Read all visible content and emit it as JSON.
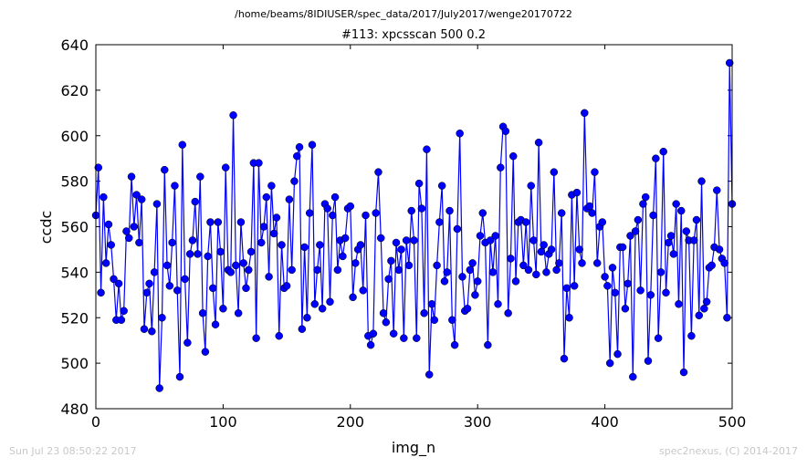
{
  "chart_data": {
    "type": "line",
    "suptitle": "/home/beams/8IDIUSER/spec_data/2017/July2017/wenge20170722",
    "title": "#113: xpcsscan 500 0.2",
    "xlabel": "img_n",
    "ylabel": "ccdc",
    "footer_left": "Sun Jul 23 08:50:22 2017",
    "footer_right": "spec2nexus, (C) 2014-2017",
    "x": [
      0,
      2,
      4,
      6,
      8,
      10,
      12,
      14,
      16,
      18,
      20,
      22,
      24,
      26,
      28,
      30,
      32,
      34,
      36,
      38,
      40,
      42,
      44,
      46,
      48,
      50,
      52,
      54,
      56,
      58,
      60,
      62,
      64,
      66,
      68,
      70,
      72,
      74,
      76,
      78,
      80,
      82,
      84,
      86,
      88,
      90,
      92,
      94,
      96,
      98,
      100,
      102,
      104,
      106,
      108,
      110,
      112,
      114,
      116,
      118,
      120,
      122,
      124,
      126,
      128,
      130,
      132,
      134,
      136,
      138,
      140,
      142,
      144,
      146,
      148,
      150,
      152,
      154,
      156,
      158,
      160,
      162,
      164,
      166,
      168,
      170,
      172,
      174,
      176,
      178,
      180,
      182,
      184,
      186,
      188,
      190,
      192,
      194,
      196,
      198,
      200,
      202,
      204,
      206,
      208,
      210,
      212,
      214,
      216,
      218,
      220,
      222,
      224,
      226,
      228,
      230,
      232,
      234,
      236,
      238,
      240,
      242,
      244,
      246,
      248,
      250,
      252,
      254,
      256,
      258,
      260,
      262,
      264,
      266,
      268,
      270,
      272,
      274,
      276,
      278,
      280,
      282,
      284,
      286,
      288,
      290,
      292,
      294,
      296,
      298,
      300,
      302,
      304,
      306,
      308,
      310,
      312,
      314,
      316,
      318,
      320,
      322,
      324,
      326,
      328,
      330,
      332,
      334,
      336,
      338,
      340,
      342,
      344,
      346,
      348,
      350,
      352,
      354,
      356,
      358,
      360,
      362,
      364,
      366,
      368,
      370,
      372,
      374,
      376,
      378,
      380,
      382,
      384,
      386,
      388,
      390,
      392,
      394,
      396,
      398,
      400,
      402,
      404,
      406,
      408,
      410,
      412,
      414,
      416,
      418,
      420,
      422,
      424,
      426,
      428,
      430,
      432,
      434,
      436,
      438,
      440,
      442,
      444,
      446,
      448,
      450,
      452,
      454,
      456,
      458,
      460,
      462,
      464,
      466,
      468,
      470,
      472,
      474,
      476,
      478,
      480,
      482,
      484,
      486,
      488,
      490,
      492,
      494,
      496,
      498,
      500
    ],
    "series": [
      {
        "color": "#0000ff",
        "values": [
          565,
          586,
          531,
          573,
          544,
          561,
          552,
          537,
          519,
          535,
          519,
          523,
          558,
          555,
          582,
          560,
          574,
          553,
          572,
          515,
          531,
          535,
          514,
          540,
          570,
          489,
          520,
          585,
          543,
          534,
          553,
          578,
          532,
          494,
          596,
          537,
          509,
          548,
          554,
          571,
          548,
          582,
          522,
          505,
          547,
          562,
          533,
          517,
          562,
          549,
          524,
          586,
          541,
          540,
          609,
          543,
          522,
          562,
          544,
          533,
          541,
          549,
          588,
          511,
          588,
          553,
          560,
          573,
          538,
          578,
          557,
          564,
          512,
          552,
          533,
          534,
          572,
          541,
          580,
          591,
          595,
          515,
          551,
          520,
          566,
          596,
          526,
          541,
          552,
          524,
          570,
          568,
          527,
          565,
          573,
          541,
          554,
          547,
          555,
          568,
          569,
          529,
          544,
          550,
          552,
          532,
          565,
          512,
          508,
          513,
          566,
          584,
          555,
          522,
          518,
          537,
          545,
          513,
          553,
          541,
          550,
          511,
          554,
          543,
          567,
          554,
          511,
          579,
          568,
          522,
          594,
          495,
          526,
          519,
          543,
          562,
          578,
          536,
          540,
          567,
          519,
          508,
          559,
          601,
          538,
          523,
          524,
          541,
          544,
          530,
          536,
          556,
          566,
          553,
          508,
          554,
          540,
          556,
          526,
          586,
          604,
          602,
          522,
          546,
          591,
          536,
          562,
          563,
          543,
          562,
          541,
          578,
          554,
          539,
          597,
          549,
          552,
          540,
          548,
          550,
          584,
          541,
          544,
          566,
          502,
          533,
          520,
          574,
          534,
          575,
          550,
          544,
          610,
          568,
          569,
          566,
          584,
          544,
          560,
          562,
          538,
          534,
          500,
          542,
          531,
          504,
          551,
          551,
          524,
          535,
          556,
          494,
          558,
          563,
          532,
          570,
          573,
          501,
          530,
          565,
          590,
          511,
          540,
          593,
          531,
          553,
          556,
          548,
          570,
          526,
          567,
          496,
          558,
          554,
          512,
          554,
          563,
          521,
          580,
          524,
          527,
          542,
          543,
          551,
          576,
          550,
          546,
          544,
          520,
          632,
          570
        ]
      }
    ],
    "xlim": [
      0,
      500
    ],
    "xticks": [
      0,
      100,
      200,
      300,
      400,
      500
    ],
    "ylim": [
      480,
      640
    ],
    "yticks": [
      480,
      500,
      520,
      540,
      560,
      580,
      600,
      620,
      640
    ]
  }
}
